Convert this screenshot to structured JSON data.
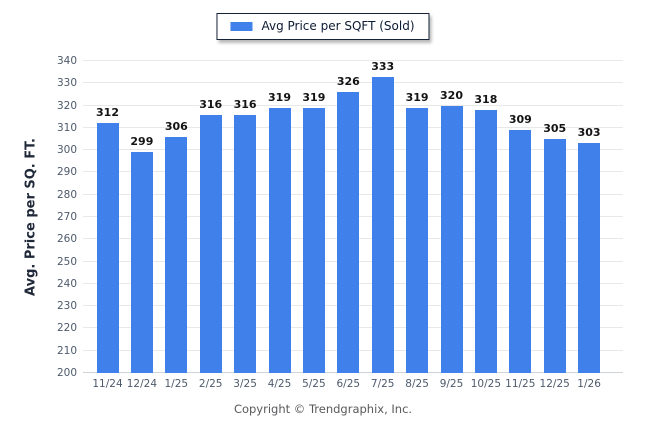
{
  "legend": {
    "label": "Avg Price per SQFT (Sold)",
    "swatch_color": "#3f80ea"
  },
  "chart_data": {
    "type": "bar",
    "title": "Avg Price per SQFT (Sold)",
    "categories": [
      "11/24",
      "12/24",
      "1/25",
      "2/25",
      "3/25",
      "4/25",
      "5/25",
      "6/25",
      "7/25",
      "8/25",
      "9/25",
      "10/25",
      "11/25",
      "12/25",
      "1/26"
    ],
    "values": [
      312,
      299,
      306,
      316,
      316,
      319,
      319,
      326,
      333,
      319,
      320,
      318,
      309,
      305,
      303
    ],
    "xlabel": "",
    "ylabel": "Avg. Price per SQ. FT.",
    "ylim": [
      200,
      340
    ],
    "ytick_step": 10,
    "grid": true,
    "legend_position": "top-center",
    "bar_color": "#3f80ea",
    "gridline_color": "#e8e8e8",
    "axis_line_color": "#cfd4d9",
    "tick_label_color": "#4d5a6b",
    "value_label_color": "#141414"
  },
  "footer": {
    "text": "Copyright © Trendgraphix, Inc."
  }
}
